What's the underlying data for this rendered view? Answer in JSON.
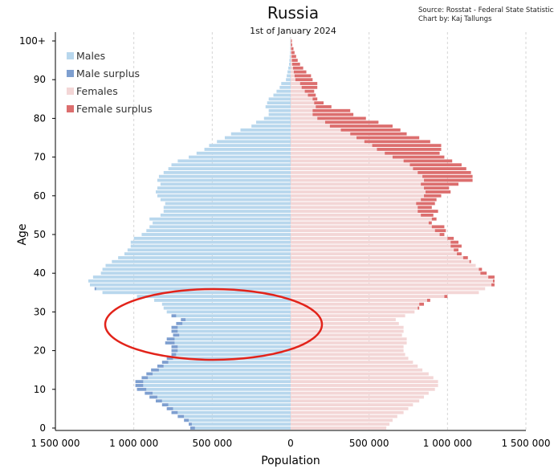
{
  "title": "Russia",
  "subtitle": "1st of January 2024",
  "source_line1": "Source: Rosstat - Federal State Statistics Servi",
  "source_line2": "Chart by: Kaj Tallungs",
  "annotation_color": "#e2231a",
  "colors": {
    "males": "#b8d7ed",
    "male_surplus": "#7e9fd0",
    "females": "#f3d6d6",
    "female_surplus": "#dc6e6e"
  },
  "chart_data": {
    "type": "bar",
    "orientation": "horizontal",
    "title": "Russia",
    "subtitle": "1st of January 2024",
    "xlabel": "Population",
    "ylabel": "Age",
    "xlim": [
      -1500000,
      1500000
    ],
    "ylim": [
      0,
      100
    ],
    "x_ticks": [
      {
        "value": -1500000,
        "label": "1 500 000"
      },
      {
        "value": -1000000,
        "label": "1 000 000"
      },
      {
        "value": -500000,
        "label": "500 000"
      },
      {
        "value": 0,
        "label": "0"
      },
      {
        "value": 500000,
        "label": "500 000"
      },
      {
        "value": 1000000,
        "label": "1 000 000"
      },
      {
        "value": 1500000,
        "label": "1 500 000"
      }
    ],
    "y_ticks": [
      {
        "value": 0,
        "label": "0"
      },
      {
        "value": 10,
        "label": "10"
      },
      {
        "value": 20,
        "label": "20"
      },
      {
        "value": 30,
        "label": "30"
      },
      {
        "value": 40,
        "label": "40"
      },
      {
        "value": 50,
        "label": "50"
      },
      {
        "value": 60,
        "label": "60"
      },
      {
        "value": 70,
        "label": "70"
      },
      {
        "value": 80,
        "label": "80"
      },
      {
        "value": 90,
        "label": "90"
      },
      {
        "value": 100,
        "label": "100+"
      }
    ],
    "legend_position": "top-left",
    "grid": "vertical",
    "legend": [
      {
        "label": "Males",
        "color": "#b8d7ed"
      },
      {
        "label": "Male surplus",
        "color": "#7e9fd0"
      },
      {
        "label": "Females",
        "color": "#f3d6d6"
      },
      {
        "label": "Female surplus",
        "color": "#dc6e6e"
      }
    ],
    "ages": [
      0,
      1,
      2,
      3,
      4,
      5,
      6,
      7,
      8,
      9,
      10,
      11,
      12,
      13,
      14,
      15,
      16,
      17,
      18,
      19,
      20,
      21,
      22,
      23,
      24,
      25,
      26,
      27,
      28,
      29,
      30,
      31,
      32,
      33,
      34,
      35,
      36,
      37,
      38,
      39,
      40,
      41,
      42,
      43,
      44,
      45,
      46,
      47,
      48,
      49,
      50,
      51,
      52,
      53,
      54,
      55,
      56,
      57,
      58,
      59,
      60,
      61,
      62,
      63,
      64,
      65,
      66,
      67,
      68,
      69,
      70,
      71,
      72,
      73,
      74,
      75,
      76,
      77,
      78,
      79,
      80,
      81,
      82,
      83,
      84,
      85,
      86,
      87,
      88,
      89,
      90,
      91,
      92,
      93,
      94,
      95,
      96,
      97,
      98,
      99,
      100
    ],
    "series": [
      {
        "name": "Males",
        "values": [
          640000,
          650000,
          680000,
          720000,
          760000,
          790000,
          820000,
          860000,
          900000,
          930000,
          980000,
          990000,
          990000,
          950000,
          920000,
          890000,
          850000,
          820000,
          790000,
          760000,
          760000,
          760000,
          800000,
          790000,
          750000,
          760000,
          760000,
          730000,
          700000,
          760000,
          790000,
          810000,
          820000,
          870000,
          980000,
          1200000,
          1250000,
          1280000,
          1290000,
          1260000,
          1210000,
          1200000,
          1180000,
          1140000,
          1100000,
          1060000,
          1040000,
          1020000,
          1020000,
          1000000,
          950000,
          920000,
          900000,
          880000,
          900000,
          830000,
          810000,
          810000,
          800000,
          830000,
          850000,
          860000,
          850000,
          830000,
          850000,
          840000,
          810000,
          780000,
          760000,
          720000,
          650000,
          600000,
          550000,
          520000,
          470000,
          420000,
          380000,
          320000,
          250000,
          220000,
          170000,
          140000,
          140000,
          160000,
          150000,
          140000,
          110000,
          90000,
          70000,
          60000,
          30000,
          25000,
          20000,
          15000,
          10000,
          8000,
          6000,
          4000,
          3000,
          2000,
          2000
        ]
      },
      {
        "name": "Females",
        "values": [
          610000,
          630000,
          650000,
          680000,
          720000,
          750000,
          780000,
          820000,
          850000,
          880000,
          920000,
          940000,
          940000,
          910000,
          880000,
          840000,
          810000,
          780000,
          750000,
          730000,
          720000,
          720000,
          740000,
          740000,
          710000,
          720000,
          720000,
          690000,
          670000,
          730000,
          790000,
          820000,
          850000,
          890000,
          1000000,
          1200000,
          1240000,
          1300000,
          1300000,
          1300000,
          1250000,
          1220000,
          1180000,
          1150000,
          1130000,
          1090000,
          1070000,
          1090000,
          1070000,
          1040000,
          980000,
          990000,
          980000,
          900000,
          930000,
          910000,
          940000,
          900000,
          920000,
          930000,
          960000,
          1020000,
          1010000,
          1070000,
          1160000,
          1160000,
          1150000,
          1120000,
          1090000,
          1030000,
          980000,
          950000,
          960000,
          960000,
          890000,
          820000,
          740000,
          700000,
          650000,
          560000,
          480000,
          400000,
          380000,
          260000,
          210000,
          170000,
          160000,
          150000,
          170000,
          170000,
          140000,
          130000,
          100000,
          80000,
          60000,
          45000,
          35000,
          25000,
          18000,
          10000,
          8000
        ]
      }
    ]
  }
}
